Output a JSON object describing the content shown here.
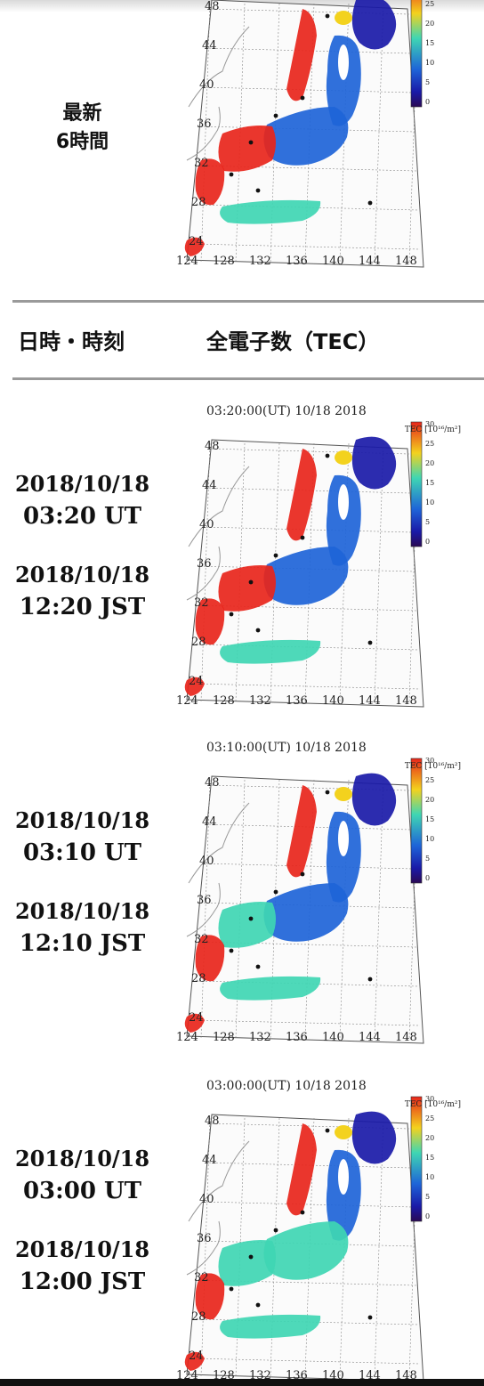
{
  "latest": {
    "label_line1": "最新",
    "label_line2": "6時間"
  },
  "header": {
    "datetime_label": "日時・時刻",
    "tec_label": "全電子数（TEC）"
  },
  "map_axes": {
    "lat_labels": [
      "48",
      "44",
      "40",
      "36",
      "32",
      "28",
      "24"
    ],
    "lon_labels": [
      "124",
      "128",
      "132",
      "136",
      "140",
      "144",
      "148"
    ],
    "colorbar_ticks": [
      "30",
      "25",
      "20",
      "15",
      "10",
      "5",
      "0"
    ],
    "colorbar_unit": "TEC [10¹⁶/m²]",
    "colors": {
      "high": "#e8251b",
      "mid_high": "#f3d21e",
      "mid": "#3fd6b3",
      "low": "#1e64d8",
      "very_low": "#1a1aa8",
      "min": "#2a0a55"
    }
  },
  "frames": [
    {
      "map_title": "03:20:00(UT)  10/18 2018",
      "ut_date": "2018/10/18",
      "ut_time": "03:20 UT",
      "jst_date": "2018/10/18",
      "jst_time": "12:20 JST"
    },
    {
      "map_title": "03:10:00(UT)  10/18 2018",
      "ut_date": "2018/10/18",
      "ut_time": "03:10 UT",
      "jst_date": "2018/10/18",
      "jst_time": "12:10 JST"
    },
    {
      "map_title": "03:00:00(UT)  10/18 2018",
      "ut_date": "2018/10/18",
      "ut_time": "03:00 UT",
      "jst_date": "2018/10/18",
      "jst_time": "12:00 JST"
    }
  ]
}
